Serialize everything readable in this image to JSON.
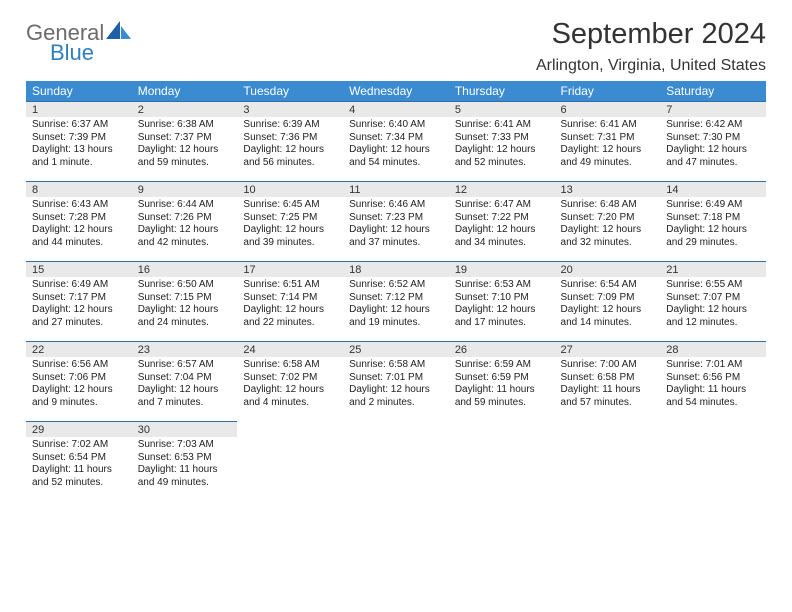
{
  "logo": {
    "word1": "General",
    "word2": "Blue"
  },
  "title": "September 2024",
  "location": "Arlington, Virginia, United States",
  "colors": {
    "header_bg": "#3a8bd0",
    "header_text": "#ffffff",
    "daynum_bg": "#e9e9e9",
    "rule": "#2f6fa5",
    "logo_gray": "#6b6b6b",
    "logo_blue": "#2f7fbf"
  },
  "day_headers": [
    "Sunday",
    "Monday",
    "Tuesday",
    "Wednesday",
    "Thursday",
    "Friday",
    "Saturday"
  ],
  "weeks": [
    [
      {
        "n": "1",
        "sr": "Sunrise: 6:37 AM",
        "ss": "Sunset: 7:39 PM",
        "dl": "Daylight: 13 hours and 1 minute."
      },
      {
        "n": "2",
        "sr": "Sunrise: 6:38 AM",
        "ss": "Sunset: 7:37 PM",
        "dl": "Daylight: 12 hours and 59 minutes."
      },
      {
        "n": "3",
        "sr": "Sunrise: 6:39 AM",
        "ss": "Sunset: 7:36 PM",
        "dl": "Daylight: 12 hours and 56 minutes."
      },
      {
        "n": "4",
        "sr": "Sunrise: 6:40 AM",
        "ss": "Sunset: 7:34 PM",
        "dl": "Daylight: 12 hours and 54 minutes."
      },
      {
        "n": "5",
        "sr": "Sunrise: 6:41 AM",
        "ss": "Sunset: 7:33 PM",
        "dl": "Daylight: 12 hours and 52 minutes."
      },
      {
        "n": "6",
        "sr": "Sunrise: 6:41 AM",
        "ss": "Sunset: 7:31 PM",
        "dl": "Daylight: 12 hours and 49 minutes."
      },
      {
        "n": "7",
        "sr": "Sunrise: 6:42 AM",
        "ss": "Sunset: 7:30 PM",
        "dl": "Daylight: 12 hours and 47 minutes."
      }
    ],
    [
      {
        "n": "8",
        "sr": "Sunrise: 6:43 AM",
        "ss": "Sunset: 7:28 PM",
        "dl": "Daylight: 12 hours and 44 minutes."
      },
      {
        "n": "9",
        "sr": "Sunrise: 6:44 AM",
        "ss": "Sunset: 7:26 PM",
        "dl": "Daylight: 12 hours and 42 minutes."
      },
      {
        "n": "10",
        "sr": "Sunrise: 6:45 AM",
        "ss": "Sunset: 7:25 PM",
        "dl": "Daylight: 12 hours and 39 minutes."
      },
      {
        "n": "11",
        "sr": "Sunrise: 6:46 AM",
        "ss": "Sunset: 7:23 PM",
        "dl": "Daylight: 12 hours and 37 minutes."
      },
      {
        "n": "12",
        "sr": "Sunrise: 6:47 AM",
        "ss": "Sunset: 7:22 PM",
        "dl": "Daylight: 12 hours and 34 minutes."
      },
      {
        "n": "13",
        "sr": "Sunrise: 6:48 AM",
        "ss": "Sunset: 7:20 PM",
        "dl": "Daylight: 12 hours and 32 minutes."
      },
      {
        "n": "14",
        "sr": "Sunrise: 6:49 AM",
        "ss": "Sunset: 7:18 PM",
        "dl": "Daylight: 12 hours and 29 minutes."
      }
    ],
    [
      {
        "n": "15",
        "sr": "Sunrise: 6:49 AM",
        "ss": "Sunset: 7:17 PM",
        "dl": "Daylight: 12 hours and 27 minutes."
      },
      {
        "n": "16",
        "sr": "Sunrise: 6:50 AM",
        "ss": "Sunset: 7:15 PM",
        "dl": "Daylight: 12 hours and 24 minutes."
      },
      {
        "n": "17",
        "sr": "Sunrise: 6:51 AM",
        "ss": "Sunset: 7:14 PM",
        "dl": "Daylight: 12 hours and 22 minutes."
      },
      {
        "n": "18",
        "sr": "Sunrise: 6:52 AM",
        "ss": "Sunset: 7:12 PM",
        "dl": "Daylight: 12 hours and 19 minutes."
      },
      {
        "n": "19",
        "sr": "Sunrise: 6:53 AM",
        "ss": "Sunset: 7:10 PM",
        "dl": "Daylight: 12 hours and 17 minutes."
      },
      {
        "n": "20",
        "sr": "Sunrise: 6:54 AM",
        "ss": "Sunset: 7:09 PM",
        "dl": "Daylight: 12 hours and 14 minutes."
      },
      {
        "n": "21",
        "sr": "Sunrise: 6:55 AM",
        "ss": "Sunset: 7:07 PM",
        "dl": "Daylight: 12 hours and 12 minutes."
      }
    ],
    [
      {
        "n": "22",
        "sr": "Sunrise: 6:56 AM",
        "ss": "Sunset: 7:06 PM",
        "dl": "Daylight: 12 hours and 9 minutes."
      },
      {
        "n": "23",
        "sr": "Sunrise: 6:57 AM",
        "ss": "Sunset: 7:04 PM",
        "dl": "Daylight: 12 hours and 7 minutes."
      },
      {
        "n": "24",
        "sr": "Sunrise: 6:58 AM",
        "ss": "Sunset: 7:02 PM",
        "dl": "Daylight: 12 hours and 4 minutes."
      },
      {
        "n": "25",
        "sr": "Sunrise: 6:58 AM",
        "ss": "Sunset: 7:01 PM",
        "dl": "Daylight: 12 hours and 2 minutes."
      },
      {
        "n": "26",
        "sr": "Sunrise: 6:59 AM",
        "ss": "Sunset: 6:59 PM",
        "dl": "Daylight: 11 hours and 59 minutes."
      },
      {
        "n": "27",
        "sr": "Sunrise: 7:00 AM",
        "ss": "Sunset: 6:58 PM",
        "dl": "Daylight: 11 hours and 57 minutes."
      },
      {
        "n": "28",
        "sr": "Sunrise: 7:01 AM",
        "ss": "Sunset: 6:56 PM",
        "dl": "Daylight: 11 hours and 54 minutes."
      }
    ],
    [
      {
        "n": "29",
        "sr": "Sunrise: 7:02 AM",
        "ss": "Sunset: 6:54 PM",
        "dl": "Daylight: 11 hours and 52 minutes."
      },
      {
        "n": "30",
        "sr": "Sunrise: 7:03 AM",
        "ss": "Sunset: 6:53 PM",
        "dl": "Daylight: 11 hours and 49 minutes."
      },
      null,
      null,
      null,
      null,
      null
    ]
  ]
}
